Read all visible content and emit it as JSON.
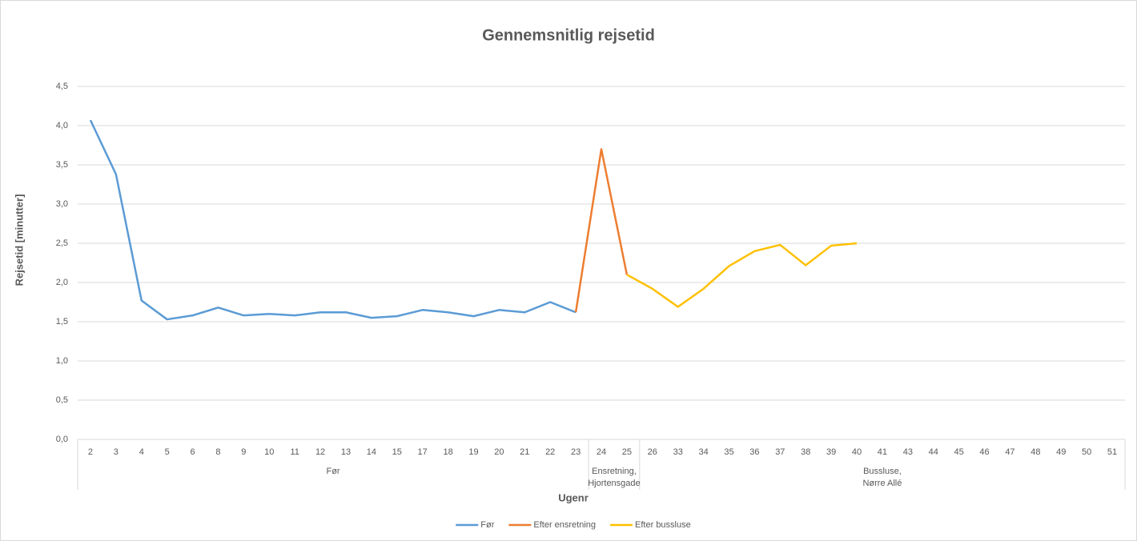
{
  "chart_data": {
    "type": "line",
    "title": "Gennemsnitlig rejsetid",
    "x_label": "Ugenr",
    "y_label": "Rejsetid [minutter]",
    "categories": [
      "2",
      "3",
      "4",
      "5",
      "6",
      "8",
      "9",
      "10",
      "11",
      "12",
      "13",
      "14",
      "15",
      "17",
      "18",
      "19",
      "20",
      "21",
      "22",
      "23",
      "24",
      "25",
      "26",
      "33",
      "34",
      "35",
      "36",
      "37",
      "38",
      "39",
      "40",
      "41",
      "43",
      "44",
      "45",
      "46",
      "47",
      "48",
      "49",
      "50",
      "51"
    ],
    "category_groups": [
      {
        "label": [
          "Før"
        ],
        "categories": [
          "2",
          "3",
          "4",
          "5",
          "6",
          "8",
          "9",
          "10",
          "11",
          "12",
          "13",
          "14",
          "15",
          "17",
          "18",
          "19",
          "20",
          "21",
          "22",
          "23"
        ]
      },
      {
        "label": [
          "Ensretning,",
          "Hjortensgade"
        ],
        "categories": [
          "24",
          "25"
        ]
      },
      {
        "label": [
          "Bussluse,",
          "Nørre Allé"
        ],
        "categories": [
          "26",
          "33",
          "34",
          "35",
          "36",
          "37",
          "38",
          "39",
          "40",
          "41",
          "43",
          "44",
          "45",
          "46",
          "47",
          "48",
          "49",
          "50",
          "51"
        ]
      }
    ],
    "series": [
      {
        "name": "Før",
        "color": "#5b9bd5",
        "values": [
          4.07,
          3.38,
          1.77,
          1.53,
          1.58,
          1.68,
          1.58,
          1.6,
          1.58,
          1.62,
          1.62,
          1.55,
          1.57,
          1.65,
          1.62,
          1.57,
          1.65,
          1.62,
          1.75,
          1.62,
          null,
          null,
          null,
          null,
          null,
          null,
          null,
          null,
          null,
          null,
          null,
          null,
          null,
          null,
          null,
          null,
          null,
          null,
          null,
          null,
          null
        ]
      },
      {
        "name": "Efter ensretning",
        "color": "#ed7d31",
        "values": [
          null,
          null,
          null,
          null,
          null,
          null,
          null,
          null,
          null,
          null,
          null,
          null,
          null,
          null,
          null,
          null,
          null,
          null,
          null,
          1.62,
          3.7,
          2.1,
          null,
          null,
          null,
          null,
          null,
          null,
          null,
          null,
          null,
          null,
          null,
          null,
          null,
          null,
          null,
          null,
          null,
          null,
          null
        ]
      },
      {
        "name": "Efter bussluse",
        "color": "#ffc000",
        "values": [
          null,
          null,
          null,
          null,
          null,
          null,
          null,
          null,
          null,
          null,
          null,
          null,
          null,
          null,
          null,
          null,
          null,
          null,
          null,
          null,
          null,
          2.1,
          1.92,
          1.69,
          1.92,
          2.21,
          2.4,
          2.48,
          2.22,
          2.47,
          2.5,
          null,
          null,
          null,
          null,
          null,
          null,
          null,
          null,
          null,
          null
        ]
      }
    ],
    "ylim": [
      0,
      4.5
    ],
    "yticks": [
      {
        "value": 0,
        "label": "0,0"
      },
      {
        "value": 0.5,
        "label": "0,5"
      },
      {
        "value": 1,
        "label": "1,0"
      },
      {
        "value": 1.5,
        "label": "1,5"
      },
      {
        "value": 2,
        "label": "2,0"
      },
      {
        "value": 2.5,
        "label": "2,5"
      },
      {
        "value": 3,
        "label": "3,0"
      },
      {
        "value": 3.5,
        "label": "3,5"
      },
      {
        "value": 4,
        "label": "4,0"
      },
      {
        "value": 4.5,
        "label": "4,5"
      }
    ],
    "grid": true,
    "legend": "bottom"
  }
}
